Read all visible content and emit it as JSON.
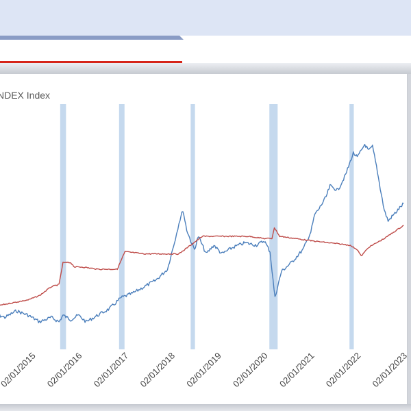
{
  "window": {
    "header_color": "#dde5f5",
    "tab_accent_color": "#8a9cc5",
    "tab_underline_color": "#d62418"
  },
  "chart_data": {
    "type": "line",
    "title": "NDEX Index",
    "xlabel": "",
    "ylabel": "",
    "x_axis": {
      "type": "date",
      "range": [
        "2014-03-01",
        "2023-04-01"
      ],
      "tick_labels": [
        "02/01/2015",
        "02/01/2016",
        "02/01/2017",
        "02/01/2018",
        "02/01/2019",
        "02/01/2020",
        "02/01/2021",
        "02/01/2022",
        "02/01/2023"
      ],
      "tick_dates": [
        "2015-02-01",
        "2016-02-01",
        "2017-02-01",
        "2018-02-01",
        "2019-02-01",
        "2020-02-01",
        "2021-02-01",
        "2022-02-01",
        "2023-02-01"
      ],
      "label_rotation": "-45deg"
    },
    "y_axis": {
      "visible": false,
      "range": [
        0,
        100
      ]
    },
    "grid": false,
    "legend": "none",
    "shaded_periods": [
      {
        "start": "2015-08-10",
        "end": "2015-09-25"
      },
      {
        "start": "2016-11-15",
        "end": "2016-12-28"
      },
      {
        "start": "2018-06-01",
        "end": "2018-07-05"
      },
      {
        "start": "2020-02-10",
        "end": "2020-04-15"
      },
      {
        "start": "2021-11-01",
        "end": "2021-12-05"
      }
    ],
    "series": [
      {
        "color": "#4a7ebb",
        "points": [
          [
            "2014-03-01",
            15
          ],
          [
            "2014-06-01",
            13
          ],
          [
            "2014-09-01",
            16
          ],
          [
            "2014-12-01",
            14
          ],
          [
            "2015-03-01",
            11
          ],
          [
            "2015-06-01",
            13
          ],
          [
            "2015-08-01",
            11
          ],
          [
            "2015-09-01",
            14
          ],
          [
            "2015-11-01",
            12
          ],
          [
            "2016-01-01",
            14
          ],
          [
            "2016-03-01",
            11
          ],
          [
            "2016-06-01",
            14
          ],
          [
            "2016-09-01",
            17
          ],
          [
            "2016-12-01",
            22
          ],
          [
            "2017-03-01",
            24
          ],
          [
            "2017-06-01",
            27
          ],
          [
            "2017-09-01",
            30
          ],
          [
            "2017-12-01",
            35
          ],
          [
            "2018-01-01",
            42
          ],
          [
            "2018-02-01",
            49
          ],
          [
            "2018-03-01",
            56
          ],
          [
            "2018-04-01",
            62
          ],
          [
            "2018-05-01",
            53
          ],
          [
            "2018-06-01",
            48
          ],
          [
            "2018-07-01",
            44
          ],
          [
            "2018-08-01",
            50
          ],
          [
            "2018-10-01",
            42
          ],
          [
            "2018-12-01",
            46
          ],
          [
            "2019-02-01",
            42
          ],
          [
            "2019-05-01",
            45
          ],
          [
            "2019-08-01",
            47
          ],
          [
            "2019-11-01",
            46
          ],
          [
            "2020-01-01",
            48
          ],
          [
            "2020-02-15",
            43
          ],
          [
            "2020-03-10",
            30
          ],
          [
            "2020-03-25",
            22
          ],
          [
            "2020-04-15",
            27
          ],
          [
            "2020-05-15",
            34
          ],
          [
            "2020-08-01",
            38
          ],
          [
            "2020-11-01",
            44
          ],
          [
            "2021-01-01",
            52
          ],
          [
            "2021-02-01",
            60
          ],
          [
            "2021-03-01",
            62
          ],
          [
            "2021-05-01",
            68
          ],
          [
            "2021-06-01",
            73
          ],
          [
            "2021-08-01",
            71
          ],
          [
            "2021-10-01",
            78
          ],
          [
            "2021-12-01",
            88
          ],
          [
            "2022-01-01",
            86
          ],
          [
            "2022-02-01",
            89
          ],
          [
            "2022-03-01",
            92
          ],
          [
            "2022-04-01",
            89
          ],
          [
            "2022-05-01",
            91
          ],
          [
            "2022-06-01",
            82
          ],
          [
            "2022-07-01",
            72
          ],
          [
            "2022-08-01",
            62
          ],
          [
            "2022-09-01",
            57
          ],
          [
            "2022-10-01",
            59
          ],
          [
            "2022-11-01",
            61
          ],
          [
            "2023-01-01",
            65
          ]
        ]
      },
      {
        "color": "#be4b48",
        "points": [
          [
            "2014-03-01",
            18
          ],
          [
            "2014-06-01",
            19
          ],
          [
            "2014-09-01",
            20
          ],
          [
            "2014-12-01",
            21
          ],
          [
            "2015-03-01",
            23
          ],
          [
            "2015-06-01",
            27
          ],
          [
            "2015-08-01",
            28
          ],
          [
            "2015-09-01",
            38
          ],
          [
            "2015-11-01",
            38
          ],
          [
            "2015-12-01",
            36
          ],
          [
            "2016-02-01",
            36
          ],
          [
            "2016-06-01",
            35
          ],
          [
            "2016-11-01",
            35
          ],
          [
            "2016-12-01",
            39
          ],
          [
            "2017-01-01",
            43
          ],
          [
            "2017-06-01",
            42
          ],
          [
            "2017-12-01",
            42
          ],
          [
            "2018-03-01",
            42
          ],
          [
            "2018-06-01",
            46
          ],
          [
            "2018-09-01",
            50
          ],
          [
            "2019-03-01",
            50
          ],
          [
            "2019-09-01",
            50
          ],
          [
            "2020-01-01",
            49
          ],
          [
            "2020-03-01",
            49
          ],
          [
            "2020-03-20",
            54
          ],
          [
            "2020-05-01",
            50
          ],
          [
            "2020-09-01",
            49
          ],
          [
            "2021-01-01",
            48
          ],
          [
            "2021-06-01",
            47
          ],
          [
            "2021-11-01",
            46
          ],
          [
            "2022-01-01",
            44
          ],
          [
            "2022-02-01",
            41
          ],
          [
            "2022-04-01",
            45
          ],
          [
            "2022-08-01",
            49
          ],
          [
            "2023-01-01",
            55
          ]
        ]
      }
    ]
  }
}
